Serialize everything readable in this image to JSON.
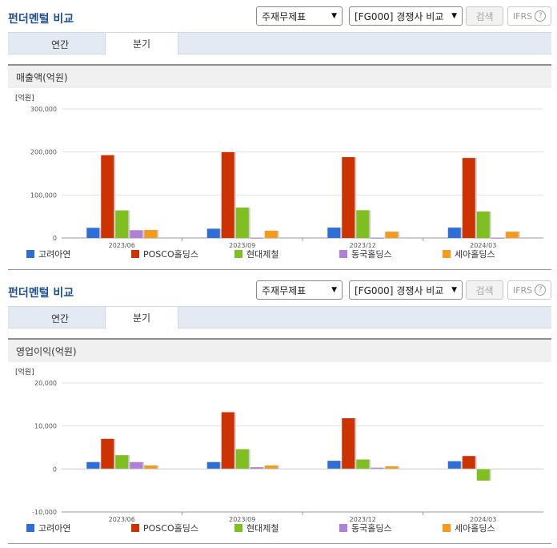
{
  "panels": [
    {
      "title": "펀더멘털 비교",
      "select_statement": "주재무제표",
      "select_compare": "[FG000] 경쟁사 비교",
      "search_label": "검색",
      "ifrs_label": "IFRS",
      "help_glyph": "?",
      "tabs": [
        {
          "label": "연간",
          "active": false
        },
        {
          "label": "분기",
          "active": true
        }
      ],
      "chart_heading": "매출액(억원)"
    },
    {
      "title": "펀더멘털 비교",
      "select_statement": "주재무제표",
      "select_compare": "[FG000] 경쟁사 비교",
      "search_label": "검색",
      "ifrs_label": "IFRS",
      "help_glyph": "?",
      "tabs": [
        {
          "label": "연간",
          "active": false
        },
        {
          "label": "분기",
          "active": true
        }
      ],
      "chart_heading": "영업이익(억원)"
    }
  ],
  "chart_data": [
    {
      "type": "bar",
      "title": "매출액(억원)",
      "unit_label": "[억원]",
      "categories": [
        "2023/06",
        "2023/09",
        "2023/12",
        "2024/03"
      ],
      "ylim": [
        0,
        300000
      ],
      "yticks": [
        0,
        100000,
        200000,
        300000
      ],
      "ytick_labels": [
        "0",
        "100,000",
        "200,000",
        "300,000"
      ],
      "grid": true,
      "legend_position": "bottom",
      "series": [
        {
          "name": "고려아연",
          "color": "#2d6fd6",
          "values": [
            23500,
            21500,
            24000,
            24000
          ]
        },
        {
          "name": "POSCO홀딩스",
          "color": "#cc3300",
          "values": [
            192500,
            199500,
            188000,
            186000
          ]
        },
        {
          "name": "현대제철",
          "color": "#7fbf1f",
          "values": [
            64000,
            70500,
            64500,
            61500
          ]
        },
        {
          "name": "동국홀딩스",
          "color": "#b07fd8",
          "values": [
            18000,
            500,
            400,
            400
          ]
        },
        {
          "name": "세아홀딩스",
          "color": "#f59a1a",
          "values": [
            18500,
            17000,
            14500,
            14500
          ]
        }
      ]
    },
    {
      "type": "bar",
      "title": "영업이익(억원)",
      "unit_label": "[억원]",
      "categories": [
        "2023/06",
        "2023/09",
        "2023/12",
        "2024/03"
      ],
      "ylim": [
        -10000,
        20000
      ],
      "yticks": [
        -10000,
        0,
        10000,
        20000
      ],
      "ytick_labels": [
        "-10,000",
        "0",
        "10,000",
        "20,000"
      ],
      "grid": true,
      "legend_position": "bottom",
      "series": [
        {
          "name": "고려아연",
          "color": "#2d6fd6",
          "values": [
            1600,
            1600,
            1900,
            1800
          ]
        },
        {
          "name": "POSCO홀딩스",
          "color": "#cc3300",
          "values": [
            7000,
            13200,
            11800,
            3000
          ]
        },
        {
          "name": "현대제철",
          "color": "#7fbf1f",
          "values": [
            3200,
            4600,
            2200,
            -2700
          ]
        },
        {
          "name": "동국홀딩스",
          "color": "#b07fd8",
          "values": [
            1600,
            400,
            300,
            0
          ]
        },
        {
          "name": "세아홀딩스",
          "color": "#f59a1a",
          "values": [
            800,
            800,
            600,
            0
          ]
        }
      ]
    }
  ]
}
